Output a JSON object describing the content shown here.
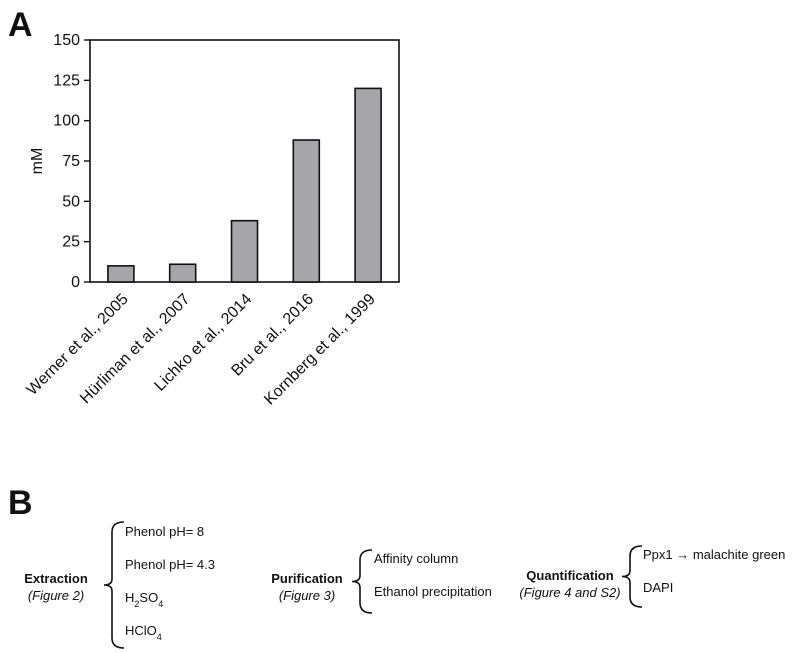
{
  "panel_a": {
    "label": "A"
  },
  "panel_b": {
    "label": "B",
    "groups": [
      {
        "title": "Extraction",
        "subtitle": "(Figure 2)",
        "items": [
          {
            "parts": [
              {
                "t": "Phenol pH= 8"
              }
            ]
          },
          {
            "parts": [
              {
                "t": "Phenol pH= 4.3"
              }
            ]
          },
          {
            "parts": [
              {
                "t": "H"
              },
              {
                "t": "2",
                "sub": true
              },
              {
                "t": "SO"
              },
              {
                "t": "4",
                "sub": true
              }
            ]
          },
          {
            "parts": [
              {
                "t": "HClO"
              },
              {
                "t": "4",
                "sub": true
              }
            ]
          }
        ]
      },
      {
        "title": "Purification",
        "subtitle": "(Figure 3)",
        "items": [
          {
            "parts": [
              {
                "t": "Affinity column"
              }
            ]
          },
          {
            "parts": [
              {
                "t": "Ethanol precipitation"
              }
            ]
          }
        ]
      },
      {
        "title": "Quantification",
        "subtitle": "(Figure 4 and S2)",
        "items": [
          {
            "parts": [
              {
                "t": "Ppx1 → malachite green"
              }
            ]
          },
          {
            "parts": [
              {
                "t": "DAPI"
              }
            ]
          }
        ]
      }
    ]
  },
  "chart_data": {
    "type": "bar",
    "categories": [
      "Werner et al., 2005",
      "Hürliman et al., 2007",
      "Lichko et al., 2014",
      "Bru et al., 2016",
      "Kornberg et al., 1999"
    ],
    "values": [
      10,
      11,
      38,
      88,
      120
    ],
    "ylabel": "mM",
    "ylim": [
      0,
      150
    ],
    "yticks": [
      0,
      25,
      50,
      75,
      100,
      125,
      150
    ],
    "bar_color": "#a6a6aa",
    "bar_edge": "#111111",
    "grid": false
  }
}
